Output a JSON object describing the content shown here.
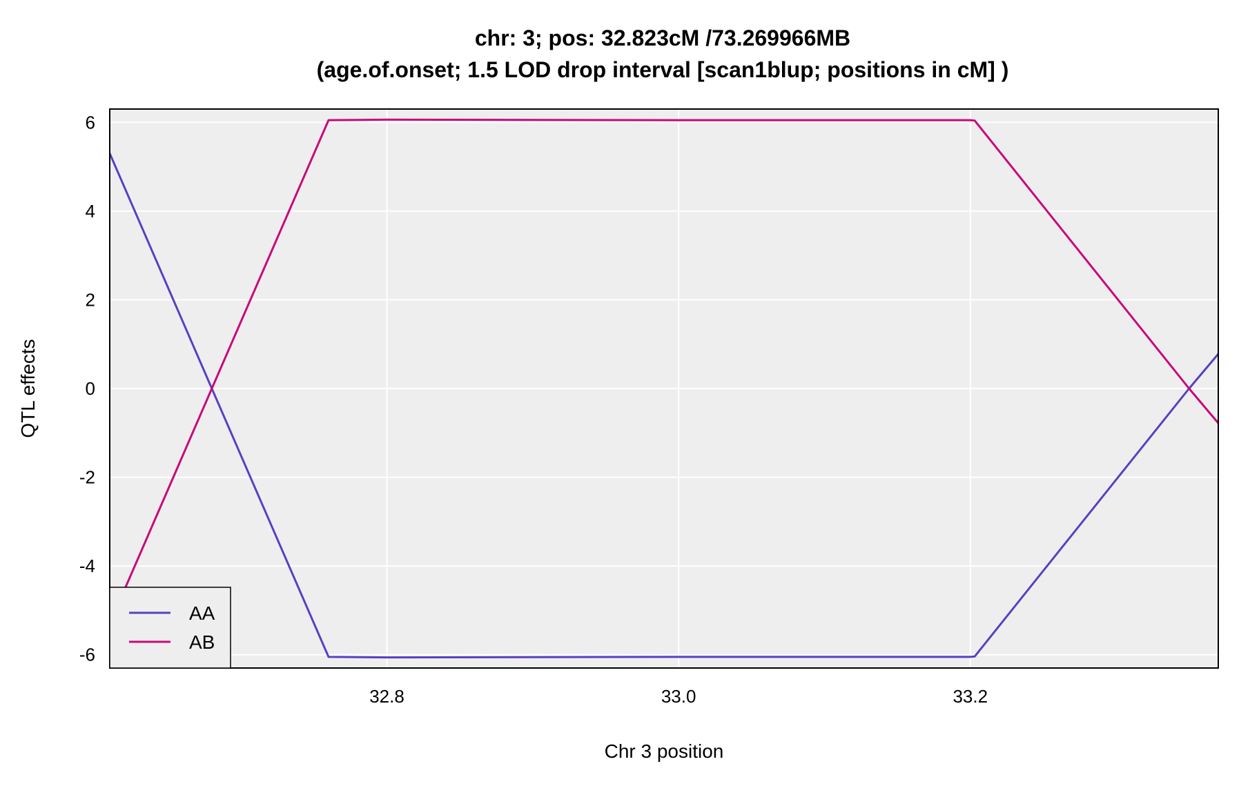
{
  "chart_data": {
    "type": "line",
    "title": "chr: 3; pos: 32.823cM /73.269966MB",
    "subtitle": "(age.of.onset; 1.5 LOD drop interval [scan1blup; positions in cM] )",
    "xlabel": "Chr 3 position",
    "ylabel": "QTL effects",
    "xlim": [
      32.61,
      33.37
    ],
    "ylim": [
      -6.3,
      6.3
    ],
    "xticks": [
      32.8,
      33.0,
      33.2
    ],
    "xtick_labels": [
      "32.8",
      "33.0",
      "33.2"
    ],
    "yticks": [
      -6,
      -4,
      -2,
      0,
      2,
      4,
      6
    ],
    "ytick_labels": [
      "-6",
      "-4",
      "-2",
      "0",
      "2",
      "4",
      "6"
    ],
    "grid": true,
    "legend_position": "bottom-left",
    "background_color": "#eeeeee",
    "series": [
      {
        "name": "AA",
        "color": "#5a3fc0",
        "x": [
          32.61,
          32.68,
          32.76,
          32.8,
          33.0,
          33.2,
          33.203,
          33.35,
          33.37
        ],
        "y": [
          5.3,
          0.0,
          -6.05,
          -6.06,
          -6.05,
          -6.05,
          -6.04,
          0.0,
          0.78
        ]
      },
      {
        "name": "AB",
        "color": "#c8087a",
        "x": [
          32.61,
          32.68,
          32.76,
          32.8,
          33.0,
          33.2,
          33.203,
          33.35,
          33.37
        ],
        "y": [
          -5.3,
          0.0,
          6.05,
          6.06,
          6.05,
          6.05,
          6.04,
          0.0,
          -0.78
        ]
      }
    ]
  }
}
